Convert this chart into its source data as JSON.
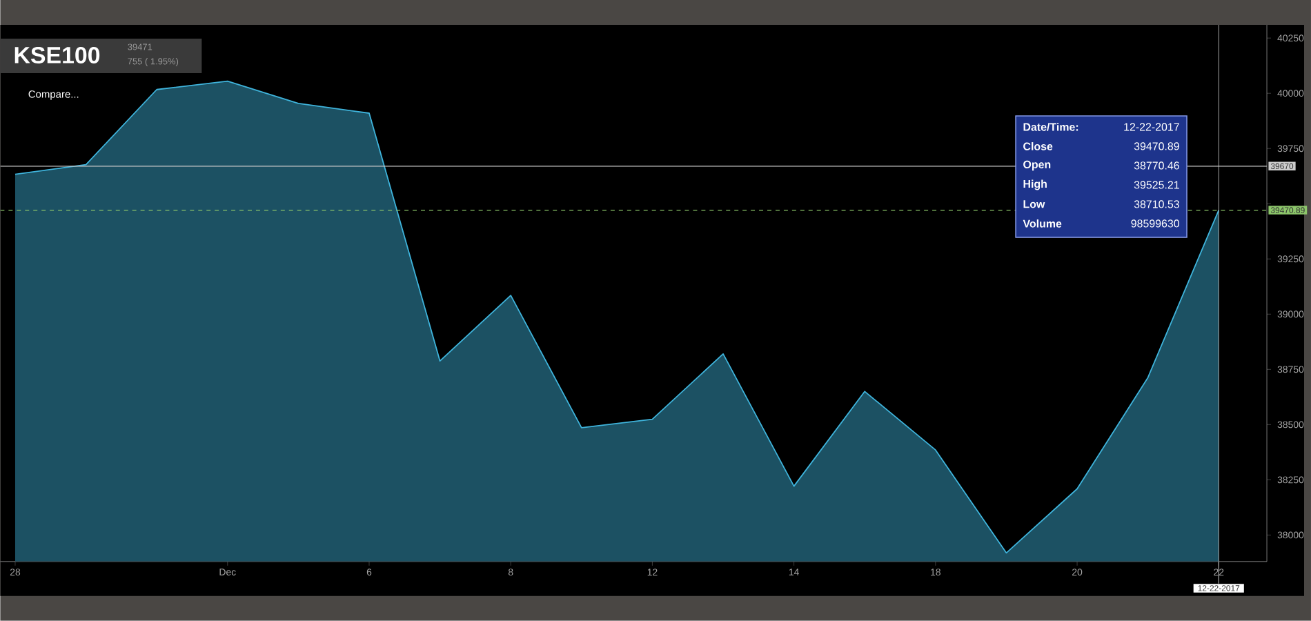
{
  "chart_data": {
    "type": "area",
    "title": "KSE100",
    "subtitle": "39471",
    "annotations": [
      "755 ( 1.95%)",
      "Compare...",
      "Date/Time:",
      "12-22-2017",
      "Close",
      "39470.89",
      "Open",
      "38770.46",
      "High",
      "39525.21",
      "Low",
      "38710.53",
      "Volume",
      "98599630"
    ],
    "categories": [
      "28",
      null,
      null,
      "Dec",
      null,
      "6",
      null,
      "8",
      null,
      "12",
      null,
      "14",
      null,
      "18",
      null,
      "20",
      null,
      "22"
    ],
    "series": [
      {
        "color": "#3fb4dc",
        "values": [
          39633,
          39677,
          40017,
          40055,
          39954,
          39910,
          38788,
          39085,
          38486,
          38524,
          38820,
          38221,
          38650,
          38385,
          37919,
          38209,
          38713,
          39471
        ]
      }
    ],
    "ylim": [
      37880,
      40310
    ],
    "yticks": [
      38000,
      38250,
      38500,
      38750,
      39000,
      39250,
      {
        "value": 39500,
        "label": null
      },
      39750,
      40000,
      40250
    ],
    "ref_lines": [
      {
        "axis": "x",
        "value": "22",
        "label": "12-22-2017",
        "color": "#aaaaaa",
        "line_style": "solid"
      },
      {
        "axis": "y",
        "value": 39670,
        "label": "39670",
        "color": "#cccccc",
        "line_style": "solid"
      },
      {
        "axis": "y",
        "value": 39470.89,
        "label": "39470.89",
        "color": "#8cc56a",
        "line_style": "dashed"
      }
    ],
    "grid": false,
    "marker": "none",
    "line_style": "solid"
  }
}
